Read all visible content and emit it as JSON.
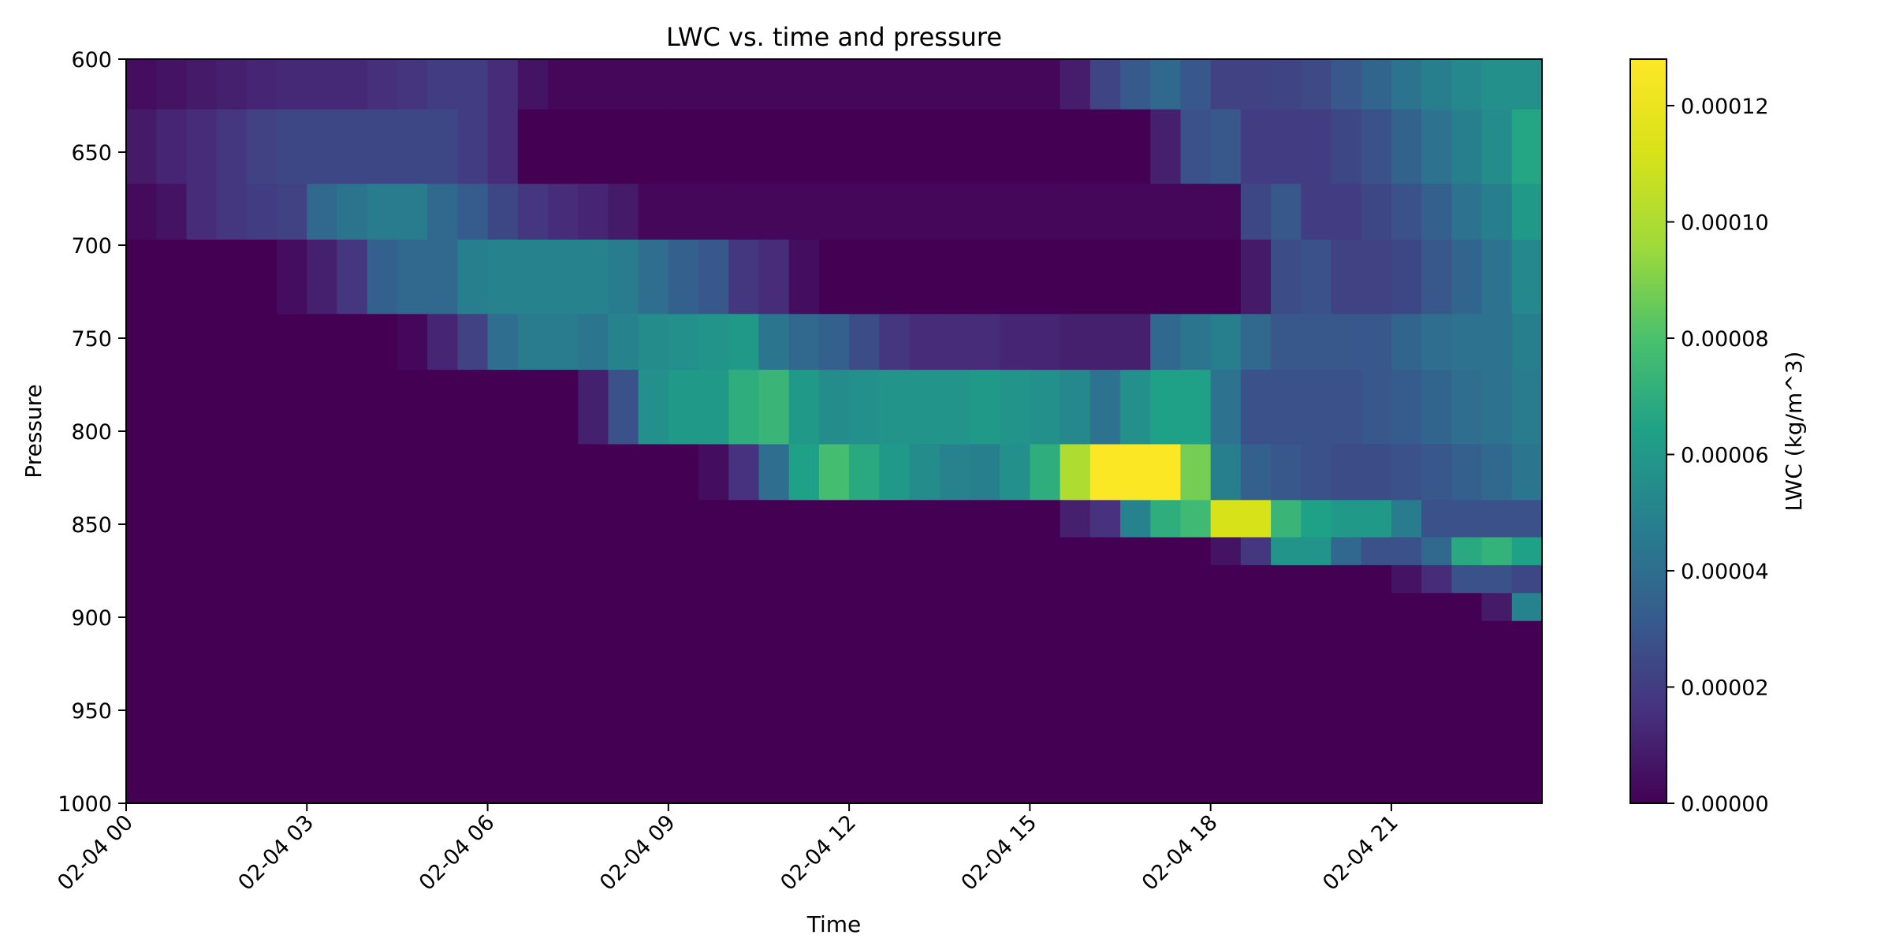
{
  "chart_data": {
    "type": "heatmap",
    "title": "LWC vs. time and pressure",
    "xlabel": "Time",
    "ylabel": "Pressure",
    "colorbar_label": "LWC (kg/m^3)",
    "colormap": "viridis",
    "x_start": "02-04 00:00",
    "x_step_minutes": 30,
    "x_columns": 47,
    "x_ticks": [
      "02-04 00",
      "02-04 03",
      "02-04 06",
      "02-04 09",
      "02-04 12",
      "02-04 15",
      "02-04 18",
      "02-04 21"
    ],
    "y_ticks": [
      "600",
      "650",
      "700",
      "750",
      "800",
      "850",
      "900",
      "950",
      "1000"
    ],
    "ylim": [
      1000,
      600
    ],
    "colorbar_ticks": [
      "0.00000",
      "0.00002",
      "0.00004",
      "0.00006",
      "0.00008",
      "0.00010",
      "0.00012"
    ],
    "vmin": 0,
    "vmax": 0.000128,
    "value_scale": 1e-06,
    "rows": [
      {
        "p_top": 600,
        "p_bottom": 627,
        "values": [
          4,
          6,
          8,
          10,
          12,
          13,
          13,
          13,
          15,
          17,
          20,
          20,
          14,
          6,
          2,
          2,
          2,
          2,
          2,
          2,
          2,
          2,
          2,
          2,
          2,
          2,
          2,
          2,
          2,
          2,
          2,
          9,
          23,
          31,
          38,
          30,
          22,
          22,
          23,
          25,
          30,
          36,
          43,
          48,
          52,
          56,
          56
        ]
      },
      {
        "p_top": 627,
        "p_bottom": 667,
        "values": [
          8,
          12,
          14,
          18,
          22,
          24,
          24,
          24,
          24,
          24,
          24,
          20,
          14,
          0,
          0,
          0,
          0,
          0,
          0,
          0,
          0,
          0,
          0,
          0,
          0,
          0,
          0,
          0,
          0,
          0,
          0,
          0,
          0,
          0,
          10,
          28,
          30,
          20,
          20,
          20,
          24,
          28,
          35,
          42,
          48,
          54,
          66
        ]
      },
      {
        "p_top": 667,
        "p_bottom": 697,
        "values": [
          3,
          6,
          14,
          18,
          20,
          22,
          38,
          43,
          46,
          46,
          38,
          32,
          24,
          18,
          14,
          12,
          8,
          2,
          2,
          2,
          2,
          2,
          2,
          2,
          2,
          2,
          2,
          2,
          2,
          2,
          2,
          2,
          2,
          2,
          2,
          2,
          2,
          24,
          30,
          20,
          20,
          24,
          28,
          34,
          42,
          48,
          60
        ]
      },
      {
        "p_top": 697,
        "p_bottom": 737,
        "values": [
          0,
          0,
          0,
          0,
          0,
          4,
          10,
          18,
          34,
          38,
          38,
          48,
          50,
          50,
          50,
          50,
          46,
          40,
          34,
          30,
          18,
          14,
          4,
          0,
          0,
          0,
          0,
          0,
          0,
          0,
          0,
          0,
          0,
          0,
          0,
          0,
          0,
          8,
          26,
          28,
          22,
          22,
          24,
          30,
          36,
          42,
          52
        ]
      },
      {
        "p_top": 737,
        "p_bottom": 767,
        "values": [
          0,
          0,
          0,
          0,
          0,
          0,
          0,
          0,
          0,
          2,
          12,
          22,
          40,
          46,
          46,
          44,
          50,
          54,
          56,
          58,
          60,
          44,
          38,
          34,
          26,
          18,
          14,
          14,
          14,
          12,
          12,
          10,
          10,
          10,
          38,
          44,
          48,
          38,
          30,
          30,
          30,
          30,
          36,
          40,
          42,
          42,
          48
        ]
      },
      {
        "p_top": 767,
        "p_bottom": 807,
        "values": [
          0,
          0,
          0,
          0,
          0,
          0,
          0,
          0,
          0,
          0,
          0,
          0,
          0,
          0,
          0,
          10,
          28,
          56,
          60,
          60,
          70,
          74,
          60,
          54,
          56,
          58,
          58,
          58,
          60,
          58,
          56,
          52,
          42,
          56,
          64,
          64,
          42,
          28,
          28,
          28,
          28,
          30,
          32,
          36,
          40,
          42,
          46
        ]
      },
      {
        "p_top": 807,
        "p_bottom": 837,
        "values": [
          0,
          0,
          0,
          0,
          0,
          0,
          0,
          0,
          0,
          0,
          0,
          0,
          0,
          0,
          0,
          0,
          0,
          0,
          0,
          4,
          16,
          40,
          64,
          78,
          68,
          60,
          54,
          50,
          48,
          56,
          70,
          100,
          127,
          127,
          127,
          88,
          48,
          34,
          30,
          28,
          26,
          26,
          28,
          30,
          34,
          38,
          44
        ]
      },
      {
        "p_top": 837,
        "p_bottom": 857,
        "values": [
          0,
          0,
          0,
          0,
          0,
          0,
          0,
          0,
          0,
          0,
          0,
          0,
          0,
          0,
          0,
          0,
          0,
          0,
          0,
          0,
          0,
          0,
          0,
          0,
          0,
          0,
          0,
          0,
          0,
          0,
          0,
          10,
          16,
          50,
          70,
          76,
          112,
          112,
          74,
          64,
          60,
          60,
          46,
          28,
          28,
          28,
          28
        ]
      },
      {
        "p_top": 857,
        "p_bottom": 872,
        "values": [
          0,
          0,
          0,
          0,
          0,
          0,
          0,
          0,
          0,
          0,
          0,
          0,
          0,
          0,
          0,
          0,
          0,
          0,
          0,
          0,
          0,
          0,
          0,
          0,
          0,
          0,
          0,
          0,
          0,
          0,
          0,
          0,
          0,
          0,
          0,
          0,
          6,
          18,
          58,
          58,
          38,
          28,
          28,
          38,
          68,
          72,
          64
        ]
      },
      {
        "p_top": 872,
        "p_bottom": 887,
        "values": [
          0,
          0,
          0,
          0,
          0,
          0,
          0,
          0,
          0,
          0,
          0,
          0,
          0,
          0,
          0,
          0,
          0,
          0,
          0,
          0,
          0,
          0,
          0,
          0,
          0,
          0,
          0,
          0,
          0,
          0,
          0,
          0,
          0,
          0,
          0,
          0,
          0,
          0,
          0,
          0,
          0,
          0,
          6,
          14,
          28,
          28,
          24
        ]
      },
      {
        "p_top": 887,
        "p_bottom": 902,
        "values": [
          0,
          0,
          0,
          0,
          0,
          0,
          0,
          0,
          0,
          0,
          0,
          0,
          0,
          0,
          0,
          0,
          0,
          0,
          0,
          0,
          0,
          0,
          0,
          0,
          0,
          0,
          0,
          0,
          0,
          0,
          0,
          0,
          0,
          0,
          0,
          0,
          0,
          0,
          0,
          0,
          0,
          0,
          0,
          0,
          0,
          8,
          50
        ]
      },
      {
        "p_top": 902,
        "p_bottom": 1000,
        "values": [
          0,
          0,
          0,
          0,
          0,
          0,
          0,
          0,
          0,
          0,
          0,
          0,
          0,
          0,
          0,
          0,
          0,
          0,
          0,
          0,
          0,
          0,
          0,
          0,
          0,
          0,
          0,
          0,
          0,
          0,
          0,
          0,
          0,
          0,
          0,
          0,
          0,
          0,
          0,
          0,
          0,
          0,
          0,
          0,
          0,
          0,
          0
        ]
      }
    ]
  }
}
